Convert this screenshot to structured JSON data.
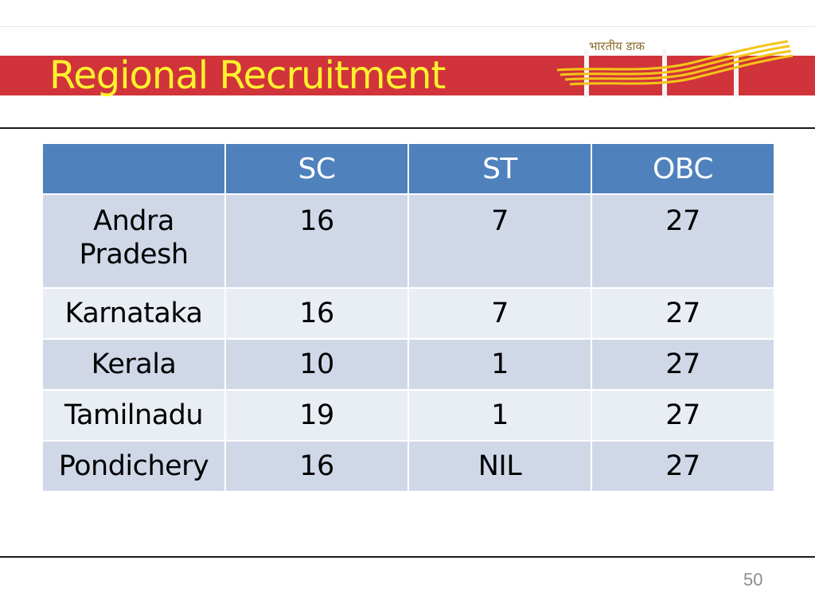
{
  "slide": {
    "title": "Regional Recruitment",
    "page_number": "50",
    "title_color": "#fff22e",
    "band_color": "#d0343a"
  },
  "logo": {
    "text": "भारतीय डाक",
    "icon": "india-post-logo-icon"
  },
  "table": {
    "headers": [
      "",
      "SC",
      "ST",
      "OBC"
    ],
    "rows": [
      [
        "Andra Pradesh",
        "16",
        "7",
        "27"
      ],
      [
        "Karnataka",
        "16",
        "7",
        "27"
      ],
      [
        "Kerala",
        "10",
        "1",
        "27"
      ],
      [
        "Tamilnadu",
        "19",
        "1",
        "27"
      ],
      [
        "Pondichery",
        "16",
        "NIL",
        "27"
      ]
    ],
    "header_color": "#4f81bd",
    "row_color_odd": "#d0d8e8",
    "row_color_even": "#e9edf4"
  }
}
